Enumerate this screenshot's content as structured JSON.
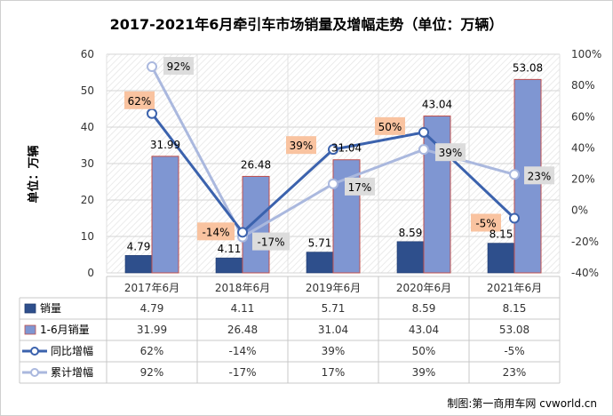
{
  "chart_data": {
    "type": "bar",
    "title": "2017-2021年6月牵引车市场销量及增幅走势（单位：万辆）",
    "ylabel": "单位：万辆",
    "ylim": [
      0,
      60
    ],
    "y_ticks": [
      0,
      10,
      20,
      30,
      40,
      50,
      60
    ],
    "y2lim": [
      -40,
      100
    ],
    "y2_ticks": [
      -40,
      -20,
      0,
      20,
      40,
      60,
      80,
      100
    ],
    "y2_tick_labels": [
      "-40%",
      "-20%",
      "0%",
      "20%",
      "40%",
      "60%",
      "80%",
      "100%"
    ],
    "categories": [
      "2017年6月",
      "2018年6月",
      "2019年6月",
      "2020年6月",
      "2021年6月"
    ],
    "series": [
      {
        "name": "销量",
        "kind": "bar",
        "axis": "left",
        "color": "#2e4f8c",
        "values": [
          4.79,
          4.11,
          5.71,
          8.59,
          8.15
        ],
        "labels": [
          "4.79",
          "4.11",
          "5.71",
          "8.59",
          "8.15"
        ]
      },
      {
        "name": "1-6月销量",
        "kind": "bar",
        "axis": "left",
        "color": "#7f96d2",
        "values": [
          31.99,
          26.48,
          31.04,
          43.04,
          53.08
        ],
        "labels": [
          "31.99",
          "26.48",
          "31.04",
          "43.04",
          "53.08"
        ]
      },
      {
        "name": "同比增幅",
        "kind": "line",
        "axis": "right",
        "color": "#3b62ad",
        "values": [
          62,
          -14,
          39,
          50,
          -5
        ],
        "labels": [
          "62%",
          "-14%",
          "39%",
          "50%",
          "-5%"
        ]
      },
      {
        "name": "累计增幅",
        "kind": "line",
        "axis": "right",
        "color": "#aab8de",
        "values": [
          92,
          -17,
          17,
          39,
          23
        ],
        "labels": [
          "92%",
          "-17%",
          "17%",
          "39%",
          "23%"
        ]
      }
    ],
    "data_table": true,
    "source": "制图:第一商用车网 cvworld.cn"
  }
}
